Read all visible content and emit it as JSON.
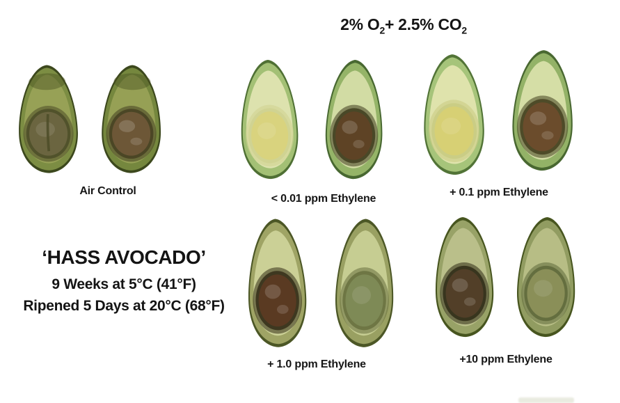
{
  "figure": {
    "background": "#ffffff",
    "text_color": "#151515",
    "gas_title": {
      "plain": "2% O2+ 2.5% CO2",
      "parts": [
        "2% O",
        "2",
        "+ 2.5% CO",
        "2"
      ]
    }
  },
  "info": {
    "line1": "‘HASS AVOCADO’",
    "line2": "9 Weeks at 5°C (41°F)",
    "line3": "Ripened 5 Days at 20°C (68°F)"
  },
  "groups": [
    {
      "label": "Air Control",
      "halves": [
        {
          "type": "seed-attached-split",
          "skin": "#3c481d",
          "flesh_outer": "#7c8d43",
          "flesh_inner": "#97a156",
          "pit_halo": "#4c4c28",
          "pit": "#6b6540",
          "sheen": false,
          "split": true,
          "top_shade": "#4a5222"
        },
        {
          "type": "seed-attached",
          "skin": "#3c481d",
          "flesh_outer": "#75873e",
          "flesh_inner": "#96a055",
          "pit_halo": "#463f22",
          "pit": "#6d5737",
          "sheen": true,
          "split": false,
          "top_shade": "#4a5222"
        }
      ]
    },
    {
      "label": "< 0.01 ppm Ethylene",
      "halves": [
        {
          "type": "seed-cavity",
          "skin": "#4f7034",
          "flesh_outer": "#a3c075",
          "flesh_inner": "#dde2ae",
          "pit_halo": "#cfd190",
          "pit": "#d9d37e",
          "sheen": false,
          "split": false
        },
        {
          "type": "seed-attached",
          "skin": "#486831",
          "flesh_outer": "#95b468",
          "flesh_inner": "#d2dca4",
          "pit_halo": "#403d1f",
          "pit": "#5e4325",
          "sheen": true,
          "split": false
        }
      ]
    },
    {
      "label": "+ 0.1 ppm Ethylene",
      "halves": [
        {
          "type": "seed-cavity",
          "skin": "#527437",
          "flesh_outer": "#a6c47a",
          "flesh_inner": "#dfe3ac",
          "pit_halo": "#c8cb82",
          "pit": "#d7d074",
          "sheen": false,
          "split": false
        },
        {
          "type": "seed-attached",
          "skin": "#496831",
          "flesh_outer": "#93b267",
          "flesh_inner": "#d5dea6",
          "pit_halo": "#44411f",
          "pit": "#6b4c2c",
          "sheen": true,
          "split": false
        }
      ]
    },
    {
      "label": "+ 1.0 ppm Ethylene",
      "halves": [
        {
          "type": "seed-attached",
          "skin": "#4c5726",
          "flesh_outer": "#9fa465",
          "flesh_inner": "#cbd096",
          "pit_halo": "#342d17",
          "pit": "#5a3a22",
          "sheen": true,
          "split": false
        },
        {
          "type": "seed-cavity",
          "skin": "#4c5726",
          "flesh_outer": "#99a062",
          "flesh_inner": "#c6cd92",
          "pit_halo": "#67703e",
          "pit": "#7e8a56",
          "sheen": false,
          "split": false
        }
      ]
    },
    {
      "label": "+10 ppm Ethylene",
      "halves": [
        {
          "type": "seed-attached",
          "skin": "#47551f",
          "flesh_outer": "#98a267",
          "flesh_inner": "#babf8a",
          "pit_halo": "#2f2c16",
          "pit": "#523f28",
          "sheen": true,
          "split": false
        },
        {
          "type": "seed-cavity",
          "skin": "#47551f",
          "flesh_outer": "#919c61",
          "flesh_inner": "#b7bd85",
          "pit_halo": "#5e693a",
          "pit": "#8a8f58",
          "sheen": false,
          "split": false
        }
      ]
    }
  ]
}
